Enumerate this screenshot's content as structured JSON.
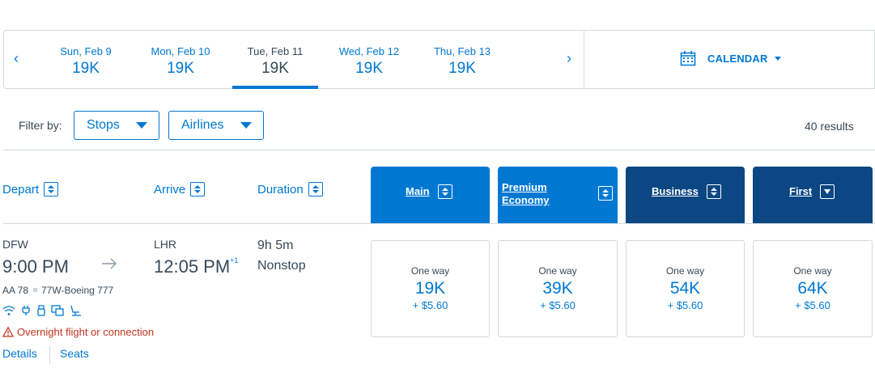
{
  "date_carousel": {
    "prev_glyph": "‹",
    "next_glyph": "›",
    "dates": [
      {
        "label": "Sun, Feb 9",
        "price": "19K"
      },
      {
        "label": "Mon, Feb 10",
        "price": "19K"
      },
      {
        "label": "Tue, Feb 11",
        "price": "19K"
      },
      {
        "label": "Wed, Feb 12",
        "price": "19K"
      },
      {
        "label": "Thu, Feb 13",
        "price": "19K"
      }
    ],
    "selected_index": 2,
    "calendar_label": "CALENDAR"
  },
  "filters": {
    "label": "Filter by:",
    "stops_label": "Stops",
    "airlines_label": "Airlines",
    "results_count": "40 results"
  },
  "columns": {
    "depart": "Depart",
    "arrive": "Arrive",
    "duration": "Duration"
  },
  "cabins": [
    {
      "name": "Main"
    },
    {
      "name_line1": "Premium",
      "name_line2": "Economy"
    },
    {
      "name": "Business"
    },
    {
      "name": "First"
    }
  ],
  "flight": {
    "origin": "DFW",
    "depart_time": "9:00 PM",
    "destination": "LHR",
    "arrive_time": "12:05 PM",
    "day_offset": "+1",
    "duration": "9h 5m",
    "stops": "Nonstop",
    "flight_number": "AA 78",
    "aircraft": "77W-Boeing 777",
    "warning": "Overnight flight or connection",
    "details_link": "Details",
    "seats_link": "Seats",
    "amenity_icons": [
      "wifi-icon",
      "power-icon",
      "usb-icon",
      "entertainment-icon",
      "lie-flat-seat-icon"
    ],
    "fares": [
      {
        "label": "One way",
        "miles": "19K",
        "tax": "+ $5.60"
      },
      {
        "label": "One way",
        "miles": "39K",
        "tax": "+ $5.60"
      },
      {
        "label": "One way",
        "miles": "54K",
        "tax": "+ $5.60"
      },
      {
        "label": "One way",
        "miles": "64K",
        "tax": "+ $5.60"
      }
    ]
  },
  "colors": {
    "accent": "#0078d2",
    "dark_header": "#0b4782",
    "text": "#36495a",
    "warning": "#c3331e",
    "border": "#d0dae0"
  }
}
